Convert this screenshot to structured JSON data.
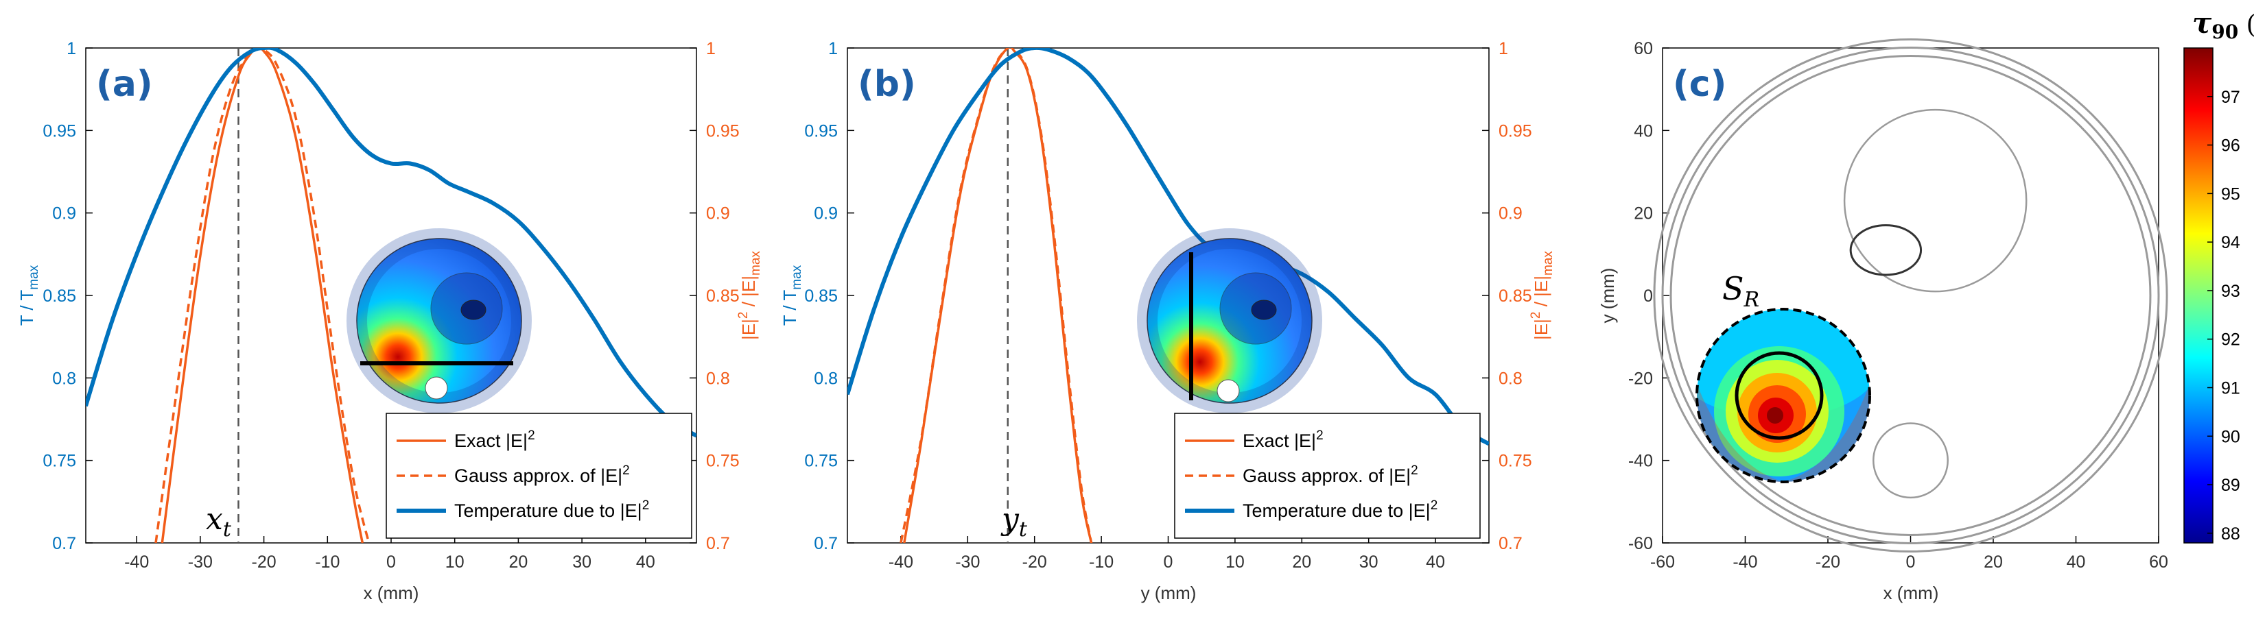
{
  "colors": {
    "blue": "#0072BD",
    "orange": "#F25C19",
    "grid": "#000000"
  },
  "chart_data": [
    {
      "id": "a",
      "type": "line",
      "panel_label": "(a)",
      "xlabel": "x (mm)",
      "ylabel_left": "T / T",
      "ylabel_left_sub": "max",
      "ylabel_right": "|E|",
      "ylabel_right_sup": "2",
      "ylabel_right_mid": " / |E|",
      "ylabel_right_sub": "max",
      "xlim": [
        -48,
        48
      ],
      "ylim": [
        0.7,
        1
      ],
      "x_ticks": [
        -40,
        -30,
        -20,
        -10,
        0,
        10,
        20,
        30,
        40
      ],
      "x_tick_labels": [
        "-40",
        "-30",
        "-20",
        "-10",
        "0",
        "10",
        "20",
        "30",
        "40"
      ],
      "y_ticks": [
        0.7,
        0.75,
        0.8,
        0.85,
        0.9,
        0.95,
        1
      ],
      "y_tick_labels_left": [
        "0.7",
        "0.75",
        "0.8",
        "0.85",
        "0.9",
        "0.95",
        "1"
      ],
      "y_tick_labels_right": [
        "0.7",
        "0.75",
        "0.8",
        "0.85",
        "0.9",
        "0.95",
        "1"
      ],
      "marker_x": -24,
      "marker_label": "x",
      "marker_label_sub": "t",
      "series": [
        {
          "name": "Exact |E|2",
          "legend": "Exact |E|",
          "legend_sup": "2",
          "style": "solid",
          "color": "#F25C19",
          "x": [
            -36,
            -33,
            -30,
            -27,
            -24,
            -22,
            -21,
            -20,
            -18,
            -15,
            -12,
            -9,
            -6,
            -4.5
          ],
          "y": [
            0.7,
            0.79,
            0.874,
            0.94,
            0.983,
            0.997,
            1.0,
            0.998,
            0.985,
            0.946,
            0.88,
            0.8,
            0.73,
            0.7
          ]
        },
        {
          "name": "Gauss approx. of |E|2",
          "legend": "Gauss approx. of |E|",
          "legend_sup": "2",
          "style": "dashed",
          "color": "#F25C19",
          "x": [
            -37,
            -34,
            -31,
            -28,
            -25,
            -22,
            -21,
            -20,
            -18,
            -15,
            -12,
            -9,
            -6,
            -3.5
          ],
          "y": [
            0.7,
            0.784,
            0.866,
            0.935,
            0.978,
            0.998,
            1.0,
            0.999,
            0.99,
            0.958,
            0.896,
            0.814,
            0.74,
            0.7
          ]
        },
        {
          "name": "Temperature due to |E|2",
          "legend": "Temperature due to |E|",
          "legend_sup": "2",
          "style": "solid",
          "color": "#0072BD",
          "width": 6,
          "x": [
            -48,
            -44,
            -40,
            -36,
            -32,
            -28,
            -25,
            -22,
            -20,
            -18,
            -15,
            -12,
            -9,
            -6,
            -3,
            0,
            3,
            6,
            9,
            12,
            16,
            20,
            24,
            28,
            32,
            36,
            40,
            44,
            48
          ],
          "y": [
            0.783,
            0.833,
            0.875,
            0.912,
            0.945,
            0.973,
            0.989,
            0.998,
            1.0,
            0.999,
            0.991,
            0.978,
            0.962,
            0.946,
            0.935,
            0.93,
            0.93,
            0.926,
            0.918,
            0.913,
            0.906,
            0.895,
            0.878,
            0.858,
            0.835,
            0.81,
            0.79,
            0.774,
            0.765
          ]
        }
      ]
    },
    {
      "id": "b",
      "type": "line",
      "panel_label": "(b)",
      "xlabel": "y (mm)",
      "ylabel_left": "T / T",
      "ylabel_left_sub": "max",
      "ylabel_right": "|E|",
      "ylabel_right_sup": "2",
      "ylabel_right_mid": " / |E|",
      "ylabel_right_sub": "max",
      "xlim": [
        -48,
        48
      ],
      "ylim": [
        0.7,
        1
      ],
      "x_ticks": [
        -40,
        -30,
        -20,
        -10,
        0,
        10,
        20,
        30,
        40
      ],
      "x_tick_labels": [
        "-40",
        "-30",
        "-20",
        "-10",
        "0",
        "10",
        "20",
        "30",
        "40"
      ],
      "y_ticks": [
        0.7,
        0.75,
        0.8,
        0.85,
        0.9,
        0.95,
        1
      ],
      "y_tick_labels_left": [
        "0.7",
        "0.75",
        "0.8",
        "0.85",
        "0.9",
        "0.95",
        "1"
      ],
      "y_tick_labels_right": [
        "0.7",
        "0.75",
        "0.8",
        "0.85",
        "0.9",
        "0.95",
        "1"
      ],
      "marker_x": -24,
      "marker_label": "y",
      "marker_label_sub": "t",
      "series": [
        {
          "name": "Exact |E|2",
          "legend": "Exact |E|",
          "legend_sup": "2",
          "style": "solid",
          "color": "#F25C19",
          "x": [
            -39.5,
            -37,
            -34,
            -31,
            -28,
            -26,
            -24,
            -23,
            -21,
            -19,
            -17,
            -15,
            -13,
            -11.5
          ],
          "y": [
            0.7,
            0.76,
            0.84,
            0.914,
            0.963,
            0.988,
            1.0,
            0.998,
            0.985,
            0.946,
            0.88,
            0.8,
            0.73,
            0.7
          ]
        },
        {
          "name": "Gauss approx. of |E|2",
          "legend": "Gauss approx. of |E|",
          "legend_sup": "2",
          "style": "dashed",
          "color": "#F25C19",
          "x": [
            -40,
            -37,
            -34,
            -31,
            -28,
            -26,
            -24,
            -23,
            -21,
            -19,
            -17,
            -15,
            -13,
            -11.5
          ],
          "y": [
            0.7,
            0.762,
            0.842,
            0.916,
            0.964,
            0.989,
            1.0,
            0.999,
            0.986,
            0.948,
            0.884,
            0.805,
            0.734,
            0.7
          ]
        },
        {
          "name": "Temperature due to |E|2",
          "legend": "Temperature due to |E|",
          "legend_sup": "2",
          "style": "solid",
          "color": "#0072BD",
          "width": 6,
          "x": [
            -48,
            -44,
            -40,
            -36,
            -32,
            -28,
            -25,
            -22,
            -20,
            -18,
            -15,
            -12,
            -9,
            -6,
            -3,
            0,
            3,
            6,
            9,
            12,
            16,
            20,
            24,
            28,
            32,
            36,
            40,
            44,
            48
          ],
          "y": [
            0.79,
            0.842,
            0.885,
            0.92,
            0.951,
            0.975,
            0.99,
            0.998,
            1.0,
            0.999,
            0.994,
            0.985,
            0.97,
            0.952,
            0.932,
            0.912,
            0.893,
            0.88,
            0.874,
            0.872,
            0.869,
            0.863,
            0.852,
            0.836,
            0.82,
            0.8,
            0.79,
            0.77,
            0.76
          ]
        }
      ]
    },
    {
      "id": "c",
      "type": "heatmap",
      "panel_label": "(c)",
      "xlabel": "x (mm)",
      "ylabel": "y (mm)",
      "xlim": [
        -60,
        60
      ],
      "ylim": [
        -60,
        60
      ],
      "x_ticks": [
        -60,
        -40,
        -20,
        0,
        20,
        40,
        60
      ],
      "x_tick_labels": [
        "-60",
        "-40",
        "-20",
        "0",
        "20",
        "40",
        "60"
      ],
      "y_ticks": [
        -60,
        -40,
        -20,
        0,
        20,
        40,
        60
      ],
      "y_tick_labels": [
        "-60",
        "-40",
        "-20",
        "0",
        "20",
        "40",
        "60"
      ],
      "region_label": "S",
      "region_label_sub": "R",
      "region_center": [
        -25,
        -27
      ],
      "region_radius": 17,
      "inner_circle_radius": 8.5,
      "hotspot_center": [
        -26,
        -29
      ],
      "outer_rings_radius": [
        58,
        60,
        62
      ],
      "inner_structures": [
        {
          "center": [
            6,
            23
          ],
          "r": 22
        },
        {
          "center": [
            -6,
            11
          ],
          "rx": 8.5,
          "ry": 6
        },
        {
          "center": [
            0,
            -40
          ],
          "r": 9
        }
      ],
      "value_range": [
        87.8,
        98
      ],
      "colorbar_title": "τ",
      "colorbar_title_sub": "90",
      "colorbar_unit": " (%)",
      "colorbar_ticks": [
        88,
        89,
        90,
        91,
        92,
        93,
        94,
        95,
        96,
        97
      ],
      "colorbar_tick_labels": [
        "88",
        "89",
        "90",
        "91",
        "92",
        "93",
        "94",
        "95",
        "96",
        "97"
      ]
    }
  ]
}
